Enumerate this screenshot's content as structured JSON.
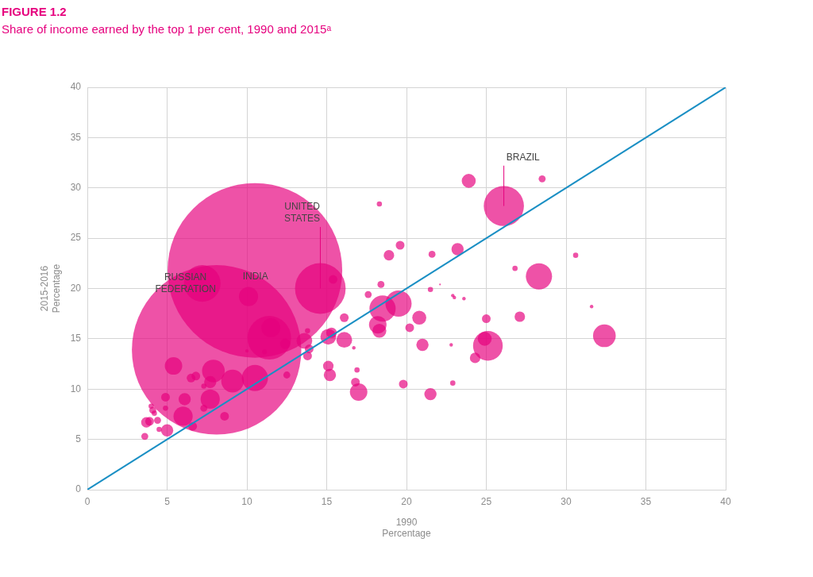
{
  "chart_data": {
    "type": "bubble",
    "title": "FIGURE 1.2",
    "subtitle": "Share of income earned by the top 1 per cent, 1990 and 2015ᵃ",
    "x_label": [
      "1990",
      "Percentage"
    ],
    "y_label": [
      "2015-2016",
      "Percentage"
    ],
    "xlim": [
      0,
      40
    ],
    "xticks": [
      0,
      5,
      10,
      15,
      20,
      25,
      30,
      35,
      40
    ],
    "ylim": [
      0,
      40
    ],
    "yticks": [
      0,
      5,
      10,
      15,
      20,
      25,
      30,
      35,
      40
    ],
    "grid": true,
    "series": [
      {
        "type": "bubble",
        "color": "#e6007e",
        "x": [
          8.1,
          10.5,
          14.6,
          7.2,
          26.1,
          28.3,
          32.4,
          25.1,
          19.5,
          18.5,
          11.4,
          11.5,
          10.1,
          10.5,
          9.1,
          7.9,
          7.7,
          6.0,
          5.0,
          5.4,
          6.1,
          7.7,
          6.6,
          4.9,
          3.7,
          3.6,
          4.1,
          4.0,
          4.2,
          4.4,
          4.5,
          4.9,
          3.9,
          8.6,
          6.5,
          6.8,
          7.3,
          7.3,
          13.6,
          13.9,
          13.8,
          13.8,
          12.4,
          12.5,
          11.1,
          10.0,
          15.1,
          15.3,
          15.4,
          16.1,
          16.1,
          15.1,
          15.2,
          17.0,
          16.8,
          16.9,
          16.7,
          17.6,
          18.3,
          18.4,
          18.2,
          18.3,
          18.9,
          19.6,
          20.2,
          20.8,
          21.0,
          19.8,
          21.5,
          21.6,
          21.5,
          22.8,
          22.9,
          23.2,
          22.9,
          23.0,
          23.6,
          23.9,
          24.3,
          24.9,
          25.0,
          26.8,
          27.1,
          28.5,
          30.6,
          31.6,
          22.1
        ],
        "values": [
          13.9,
          21.8,
          20.0,
          20.5,
          28.2,
          21.2,
          15.3,
          14.3,
          18.5,
          18.0,
          15.1,
          16.1,
          19.2,
          11.1,
          10.8,
          11.8,
          9.0,
          7.3,
          5.9,
          12.3,
          9.0,
          10.7,
          6.3,
          9.2,
          6.7,
          5.3,
          7.9,
          8.3,
          7.6,
          6.9,
          6.0,
          8.1,
          6.8,
          7.3,
          11.1,
          11.3,
          8.1,
          10.3,
          14.8,
          14.0,
          13.3,
          15.8,
          14.5,
          11.4,
          13.7,
          13.8,
          15.2,
          15.6,
          20.9,
          14.9,
          17.1,
          12.3,
          11.4,
          9.7,
          10.7,
          11.9,
          14.1,
          19.4,
          28.4,
          20.4,
          16.4,
          15.8,
          23.3,
          24.3,
          16.1,
          17.1,
          14.4,
          10.5,
          9.5,
          23.4,
          19.9,
          14.4,
          10.6,
          23.9,
          19.3,
          19.1,
          19.0,
          30.7,
          13.1,
          15.0,
          17.0,
          22.0,
          17.2,
          30.9,
          23.3,
          18.2,
          20.4
        ],
        "sizes": [
          97,
          100,
          29,
          21,
          23,
          15,
          13,
          17,
          15,
          15,
          25,
          11,
          11,
          15,
          13,
          13,
          11,
          11,
          7,
          10,
          7,
          7,
          5,
          5,
          6,
          4,
          4,
          3,
          3,
          4,
          3,
          3,
          5,
          5,
          5,
          5,
          4,
          3,
          9,
          5,
          5,
          3,
          6,
          4,
          3,
          2,
          9,
          6,
          5,
          9,
          5,
          6,
          7,
          10,
          5,
          3,
          2,
          4,
          3,
          4,
          10,
          8,
          6,
          5,
          5,
          8,
          7,
          5,
          7,
          4,
          3,
          2,
          3,
          7,
          2,
          2,
          2,
          8,
          6,
          8,
          5,
          3,
          6,
          4,
          3,
          2,
          1
        ]
      },
      {
        "type": "line",
        "color": "#1a8fc4",
        "x": [
          0,
          40
        ],
        "values": [
          0,
          40
        ]
      }
    ],
    "annotations": [
      {
        "text": [
          "BRAZIL"
        ],
        "x": 26.1,
        "y": 28.2,
        "label_x": 27.3,
        "label_y": 33.0
      },
      {
        "text": [
          "UNITED",
          "STATES"
        ],
        "x": 14.6,
        "y": 20.0,
        "label_x": 13.46,
        "label_y": 27.5
      },
      {
        "text": [
          "RUSSIAN",
          "FEDERATION"
        ],
        "x": 7.2,
        "y": 20.5,
        "label_x": 6.15,
        "label_y": 20.5
      },
      {
        "text": [
          "INDIA"
        ],
        "x": 10.5,
        "y": 21.8,
        "label_x": 10.53,
        "label_y": 21.2
      }
    ]
  }
}
